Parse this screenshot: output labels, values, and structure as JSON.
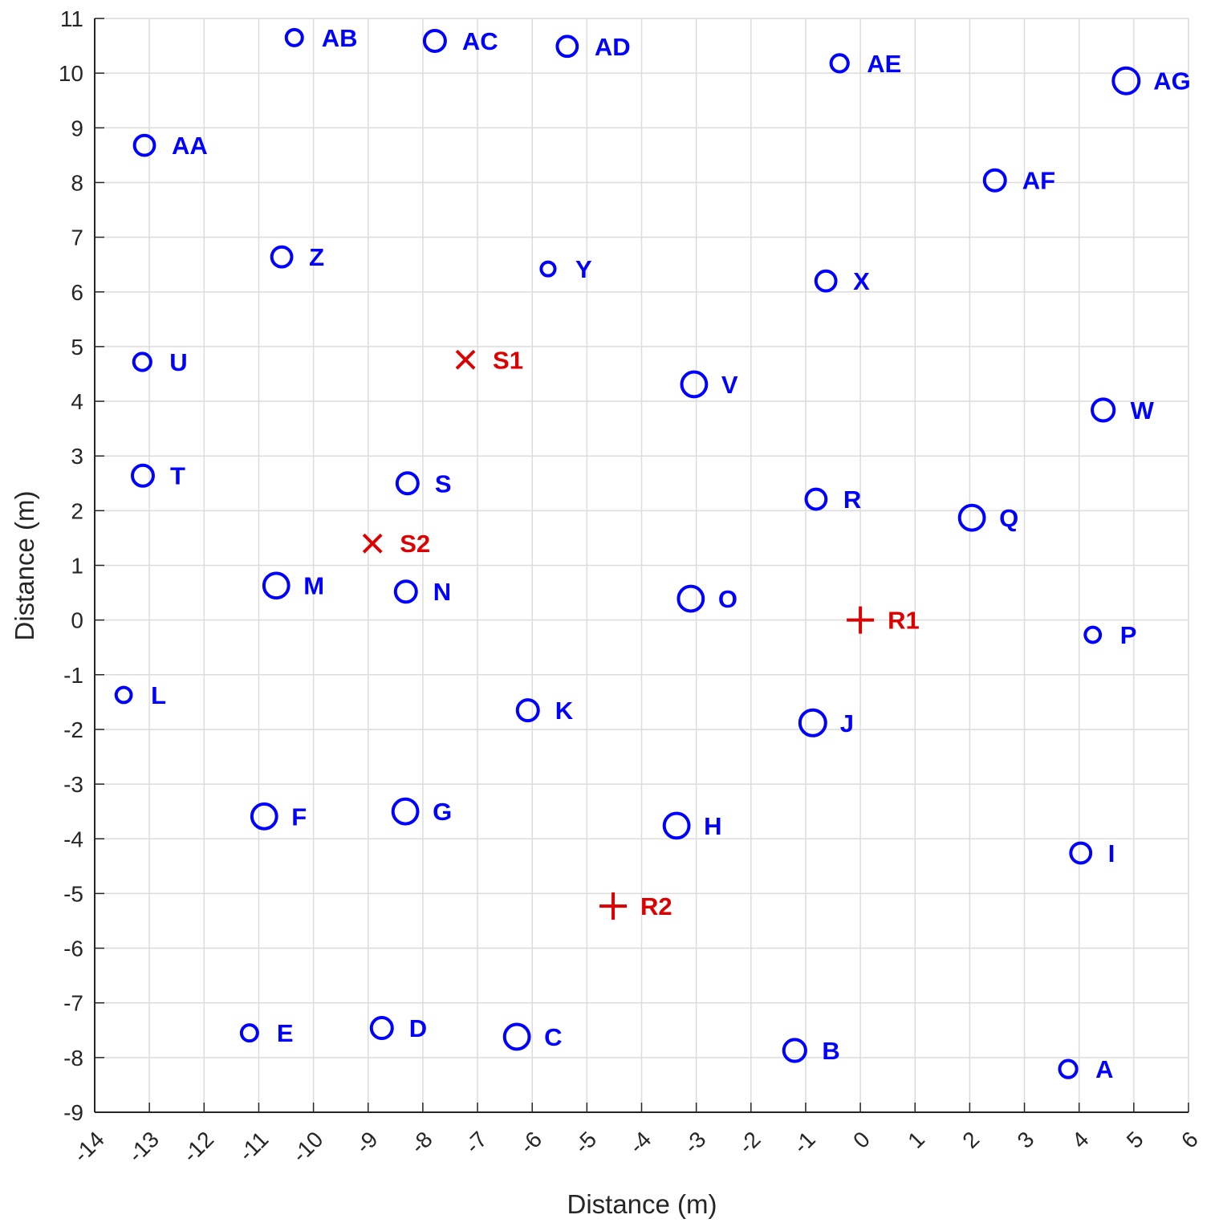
{
  "chart_data": {
    "type": "scatter",
    "title": "",
    "xlabel": "Distance (m)",
    "ylabel": "Distance (m)",
    "xlim": [
      -14,
      6
    ],
    "ylim": [
      -9,
      11
    ],
    "xticks": [
      -14,
      -13,
      -12,
      -11,
      -10,
      -9,
      -8,
      -7,
      -6,
      -5,
      -4,
      -3,
      -2,
      -1,
      0,
      1,
      2,
      3,
      4,
      5,
      6
    ],
    "yticks": [
      -9,
      -8,
      -7,
      -6,
      -5,
      -4,
      -3,
      -2,
      -1,
      0,
      1,
      2,
      3,
      4,
      5,
      6,
      7,
      8,
      9,
      10,
      11
    ],
    "grid": true,
    "colors": {
      "points": "#0000FF",
      "sources": "#DD0000",
      "receivers": "#DD0000",
      "axis": "#262626",
      "grid": "#DCDCDC"
    },
    "series": [
      {
        "name": "points",
        "marker": "circle",
        "points": [
          {
            "label": "A",
            "x": 3.8,
            "y": -8.21,
            "size": 0.55
          },
          {
            "label": "B",
            "x": -1.2,
            "y": -7.87,
            "size": 0.8
          },
          {
            "label": "C",
            "x": -6.28,
            "y": -7.62,
            "size": 0.95
          },
          {
            "label": "D",
            "x": -8.75,
            "y": -7.46,
            "size": 0.75
          },
          {
            "label": "E",
            "x": -11.17,
            "y": -7.55,
            "size": 0.5
          },
          {
            "label": "F",
            "x": -10.9,
            "y": -3.59,
            "size": 0.95
          },
          {
            "label": "G",
            "x": -8.32,
            "y": -3.5,
            "size": 0.95
          },
          {
            "label": "H",
            "x": -3.36,
            "y": -3.76,
            "size": 0.95
          },
          {
            "label": "I",
            "x": 4.03,
            "y": -4.26,
            "size": 0.7
          },
          {
            "label": "J",
            "x": -0.87,
            "y": -1.88,
            "size": 1.0
          },
          {
            "label": "K",
            "x": -6.08,
            "y": -1.65,
            "size": 0.75
          },
          {
            "label": "L",
            "x": -13.47,
            "y": -1.37,
            "size": 0.45
          },
          {
            "label": "M",
            "x": -10.68,
            "y": 0.63,
            "size": 0.95
          },
          {
            "label": "N",
            "x": -8.31,
            "y": 0.52,
            "size": 0.75
          },
          {
            "label": "O",
            "x": -3.1,
            "y": 0.39,
            "size": 0.95
          },
          {
            "label": "P",
            "x": 4.25,
            "y": -0.27,
            "size": 0.45
          },
          {
            "label": "Q",
            "x": 2.04,
            "y": 1.87,
            "size": 0.95
          },
          {
            "label": "R",
            "x": -0.81,
            "y": 2.21,
            "size": 0.7
          },
          {
            "label": "S",
            "x": -8.28,
            "y": 2.5,
            "size": 0.75
          },
          {
            "label": "T",
            "x": -13.12,
            "y": 2.64,
            "size": 0.75
          },
          {
            "label": "U",
            "x": -13.13,
            "y": 4.72,
            "size": 0.55
          },
          {
            "label": "V",
            "x": -3.04,
            "y": 4.31,
            "size": 0.95
          },
          {
            "label": "W",
            "x": 4.44,
            "y": 3.84,
            "size": 0.8
          },
          {
            "label": "X",
            "x": -0.63,
            "y": 6.2,
            "size": 0.7
          },
          {
            "label": "Y",
            "x": -5.71,
            "y": 6.42,
            "size": 0.38
          },
          {
            "label": "Z",
            "x": -10.58,
            "y": 6.64,
            "size": 0.7
          },
          {
            "label": "AA",
            "x": -13.09,
            "y": 8.68,
            "size": 0.7
          },
          {
            "label": "AB",
            "x": -10.35,
            "y": 10.65,
            "size": 0.5
          },
          {
            "label": "AC",
            "x": -7.78,
            "y": 10.59,
            "size": 0.75
          },
          {
            "label": "AD",
            "x": -5.36,
            "y": 10.49,
            "size": 0.7
          },
          {
            "label": "AE",
            "x": -0.38,
            "y": 10.18,
            "size": 0.55
          },
          {
            "label": "AF",
            "x": 2.46,
            "y": 8.04,
            "size": 0.75
          },
          {
            "label": "AG",
            "x": 4.86,
            "y": 9.86,
            "size": 1.0
          }
        ]
      },
      {
        "name": "sources",
        "marker": "x",
        "points": [
          {
            "label": "S1",
            "x": -7.22,
            "y": 4.76
          },
          {
            "label": "S2",
            "x": -8.92,
            "y": 1.4
          }
        ]
      },
      {
        "name": "receivers",
        "marker": "+",
        "points": [
          {
            "label": "R1",
            "x": 0.0,
            "y": 0.0
          },
          {
            "label": "R2",
            "x": -4.52,
            "y": -5.23
          }
        ]
      }
    ]
  }
}
